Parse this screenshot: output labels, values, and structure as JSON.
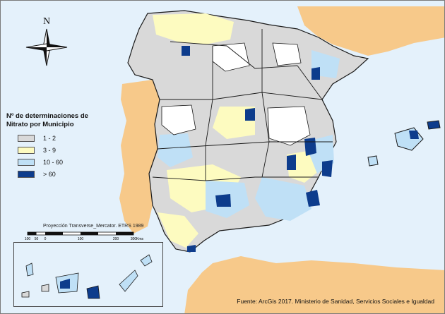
{
  "compass": {
    "north_label": "N"
  },
  "legend": {
    "title_line1": "Nº de determinaciones de",
    "title_line2": "Nitrato por Municipio",
    "items": [
      {
        "label": "1 - 2",
        "color": "#d9d9d9"
      },
      {
        "label": "3 - 9",
        "color": "#fdfbc0"
      },
      {
        "label": "10 - 60",
        "color": "#bfe0f6"
      },
      {
        "label": "> 60",
        "color": "#0d3c8c"
      }
    ]
  },
  "projection_label": "Proyección Transverse_Mercator. ETRS 1989",
  "scale": {
    "ticks": [
      "100",
      "50",
      "0",
      "100",
      "200",
      "300"
    ],
    "unit": "Kms"
  },
  "source": "Fuente: ArcGis 2017. Ministerio de Sanidad, Servicios Sociales e Igualdad",
  "colors": {
    "sea": "#e4f1fb",
    "neighbor_land": "#f7c98a",
    "no_data": "#ffffff",
    "border": "#1a1a1a"
  }
}
